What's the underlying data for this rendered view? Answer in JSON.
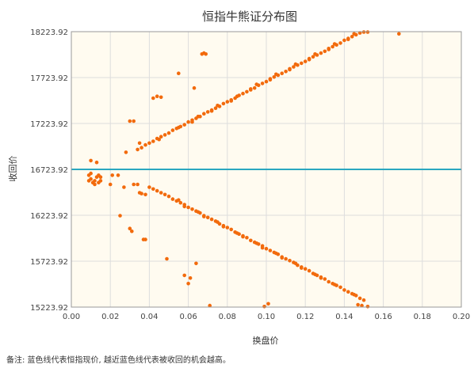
{
  "chart_data": {
    "type": "scatter",
    "title": "恒指牛熊证分布图",
    "xlabel": "换盘价",
    "ylabel": "收回价",
    "xlim": [
      0.0,
      0.2
    ],
    "ylim": [
      15223.92,
      18223.92
    ],
    "x_ticks": [
      "0.00",
      "0.02",
      "0.04",
      "0.06",
      "0.08",
      "0.10",
      "0.12",
      "0.14",
      "0.16",
      "0.18",
      "0.20"
    ],
    "y_ticks": [
      "15223.92",
      "15723.92",
      "16223.92",
      "16723.92",
      "17223.92",
      "17723.92",
      "18223.92"
    ],
    "grid": true,
    "reference_line": {
      "y": 16723.92,
      "color": "#2aa7c0"
    },
    "point_color": "#f26a0c",
    "plot_background": "#fffbf0",
    "series": [
      {
        "values": [
          [
            0.04,
            17010
          ],
          [
            0.042,
            17030
          ],
          [
            0.044,
            17060
          ],
          [
            0.046,
            17080
          ],
          [
            0.048,
            17100
          ],
          [
            0.05,
            17120
          ],
          [
            0.052,
            17150
          ],
          [
            0.054,
            17170
          ],
          [
            0.056,
            17190
          ],
          [
            0.058,
            17210
          ],
          [
            0.06,
            17240
          ],
          [
            0.062,
            17260
          ],
          [
            0.064,
            17280
          ],
          [
            0.066,
            17300
          ],
          [
            0.068,
            17330
          ],
          [
            0.07,
            17350
          ],
          [
            0.072,
            17370
          ],
          [
            0.074,
            17390
          ],
          [
            0.076,
            17410
          ],
          [
            0.078,
            17440
          ],
          [
            0.08,
            17460
          ],
          [
            0.082,
            17480
          ],
          [
            0.084,
            17500
          ],
          [
            0.086,
            17530
          ],
          [
            0.088,
            17550
          ],
          [
            0.09,
            17570
          ],
          [
            0.092,
            17590
          ],
          [
            0.094,
            17610
          ],
          [
            0.096,
            17640
          ],
          [
            0.098,
            17660
          ],
          [
            0.1,
            17680
          ],
          [
            0.102,
            17700
          ],
          [
            0.104,
            17730
          ],
          [
            0.106,
            17750
          ],
          [
            0.108,
            17770
          ],
          [
            0.11,
            17790
          ],
          [
            0.112,
            17810
          ],
          [
            0.114,
            17840
          ],
          [
            0.116,
            17860
          ],
          [
            0.118,
            17880
          ],
          [
            0.12,
            17900
          ],
          [
            0.122,
            17930
          ],
          [
            0.124,
            17950
          ],
          [
            0.126,
            17970
          ],
          [
            0.128,
            17990
          ],
          [
            0.13,
            18010
          ],
          [
            0.132,
            18040
          ],
          [
            0.134,
            18060
          ],
          [
            0.136,
            18080
          ],
          [
            0.138,
            18100
          ],
          [
            0.14,
            18130
          ],
          [
            0.142,
            18150
          ],
          [
            0.144,
            18170
          ],
          [
            0.146,
            18190
          ],
          [
            0.148,
            18210
          ],
          [
            0.15,
            18220
          ],
          [
            0.152,
            18220
          ],
          [
            0.168,
            18200
          ],
          [
            0.045,
            17050
          ],
          [
            0.055,
            17180
          ],
          [
            0.065,
            17300
          ],
          [
            0.075,
            17420
          ],
          [
            0.085,
            17520
          ],
          [
            0.095,
            17650
          ],
          [
            0.105,
            17760
          ],
          [
            0.115,
            17870
          ],
          [
            0.125,
            17980
          ],
          [
            0.135,
            18090
          ],
          [
            0.145,
            18200
          ],
          [
            0.062,
            17240
          ],
          [
            0.072,
            17360
          ],
          [
            0.082,
            17470
          ],
          [
            0.092,
            17600
          ],
          [
            0.102,
            17710
          ],
          [
            0.112,
            17820
          ],
          [
            0.122,
            17920
          ],
          [
            0.132,
            18030
          ],
          [
            0.142,
            18140
          ],
          [
            0.038,
            16990
          ],
          [
            0.036,
            16960
          ],
          [
            0.034,
            16940
          ],
          [
            0.028,
            16910
          ],
          [
            0.03,
            17250
          ],
          [
            0.032,
            17250
          ],
          [
            0.035,
            17010
          ],
          [
            0.042,
            17500
          ],
          [
            0.044,
            17520
          ],
          [
            0.046,
            17510
          ],
          [
            0.055,
            17770
          ],
          [
            0.063,
            17610
          ],
          [
            0.067,
            17980
          ],
          [
            0.068,
            17990
          ],
          [
            0.069,
            17980
          ],
          [
            0.01,
            16820
          ],
          [
            0.013,
            16800
          ],
          [
            0.04,
            16530
          ],
          [
            0.042,
            16510
          ],
          [
            0.044,
            16490
          ],
          [
            0.046,
            16470
          ],
          [
            0.048,
            16450
          ],
          [
            0.05,
            16430
          ],
          [
            0.052,
            16400
          ],
          [
            0.054,
            16380
          ],
          [
            0.056,
            16360
          ],
          [
            0.058,
            16340
          ],
          [
            0.06,
            16310
          ],
          [
            0.062,
            16290
          ],
          [
            0.064,
            16270
          ],
          [
            0.066,
            16250
          ],
          [
            0.068,
            16220
          ],
          [
            0.07,
            16200
          ],
          [
            0.072,
            16180
          ],
          [
            0.074,
            16160
          ],
          [
            0.076,
            16130
          ],
          [
            0.078,
            16110
          ],
          [
            0.08,
            16090
          ],
          [
            0.082,
            16070
          ],
          [
            0.084,
            16040
          ],
          [
            0.086,
            16020
          ],
          [
            0.088,
            16000
          ],
          [
            0.09,
            15980
          ],
          [
            0.092,
            15950
          ],
          [
            0.094,
            15930
          ],
          [
            0.096,
            15910
          ],
          [
            0.098,
            15890
          ],
          [
            0.1,
            15860
          ],
          [
            0.102,
            15840
          ],
          [
            0.104,
            15820
          ],
          [
            0.106,
            15800
          ],
          [
            0.108,
            15770
          ],
          [
            0.11,
            15750
          ],
          [
            0.112,
            15730
          ],
          [
            0.114,
            15710
          ],
          [
            0.116,
            15680
          ],
          [
            0.118,
            15660
          ],
          [
            0.12,
            15640
          ],
          [
            0.122,
            15620
          ],
          [
            0.124,
            15590
          ],
          [
            0.126,
            15570
          ],
          [
            0.128,
            15550
          ],
          [
            0.13,
            15530
          ],
          [
            0.132,
            15500
          ],
          [
            0.134,
            15480
          ],
          [
            0.136,
            15460
          ],
          [
            0.138,
            15440
          ],
          [
            0.14,
            15410
          ],
          [
            0.142,
            15390
          ],
          [
            0.144,
            15370
          ],
          [
            0.146,
            15350
          ],
          [
            0.148,
            15320
          ],
          [
            0.15,
            15300
          ],
          [
            0.147,
            15250
          ],
          [
            0.149,
            15240
          ],
          [
            0.152,
            15230
          ],
          [
            0.055,
            16390
          ],
          [
            0.065,
            16260
          ],
          [
            0.075,
            16150
          ],
          [
            0.085,
            16030
          ],
          [
            0.095,
            15920
          ],
          [
            0.105,
            15810
          ],
          [
            0.115,
            15700
          ],
          [
            0.125,
            15580
          ],
          [
            0.135,
            15470
          ],
          [
            0.145,
            15360
          ],
          [
            0.058,
            16320
          ],
          [
            0.068,
            16210
          ],
          [
            0.078,
            16100
          ],
          [
            0.088,
            15990
          ],
          [
            0.098,
            15870
          ],
          [
            0.108,
            15760
          ],
          [
            0.118,
            15650
          ],
          [
            0.128,
            15540
          ],
          [
            0.036,
            16460
          ],
          [
            0.038,
            16450
          ],
          [
            0.035,
            16470
          ],
          [
            0.032,
            16560
          ],
          [
            0.034,
            16560
          ],
          [
            0.027,
            16530
          ],
          [
            0.025,
            16220
          ],
          [
            0.03,
            16080
          ],
          [
            0.031,
            16050
          ],
          [
            0.037,
            15960
          ],
          [
            0.038,
            15960
          ],
          [
            0.049,
            15750
          ],
          [
            0.058,
            15570
          ],
          [
            0.061,
            15540
          ],
          [
            0.06,
            15480
          ],
          [
            0.064,
            15700
          ],
          [
            0.071,
            15240
          ],
          [
            0.099,
            15230
          ],
          [
            0.101,
            15260
          ],
          [
            0.009,
            16660
          ],
          [
            0.01,
            16620
          ],
          [
            0.011,
            16580
          ],
          [
            0.012,
            16600
          ],
          [
            0.013,
            16640
          ],
          [
            0.014,
            16660
          ],
          [
            0.015,
            16600
          ],
          [
            0.009,
            16600
          ],
          [
            0.01,
            16680
          ],
          [
            0.012,
            16560
          ],
          [
            0.014,
            16580
          ],
          [
            0.015,
            16640
          ],
          [
            0.02,
            16560
          ],
          [
            0.021,
            16660
          ],
          [
            0.024,
            16660
          ]
        ]
      }
    ]
  },
  "footnote": "备注:  蓝色线代表恒指现价, 越近蓝色线代表被收回的机会越高。"
}
